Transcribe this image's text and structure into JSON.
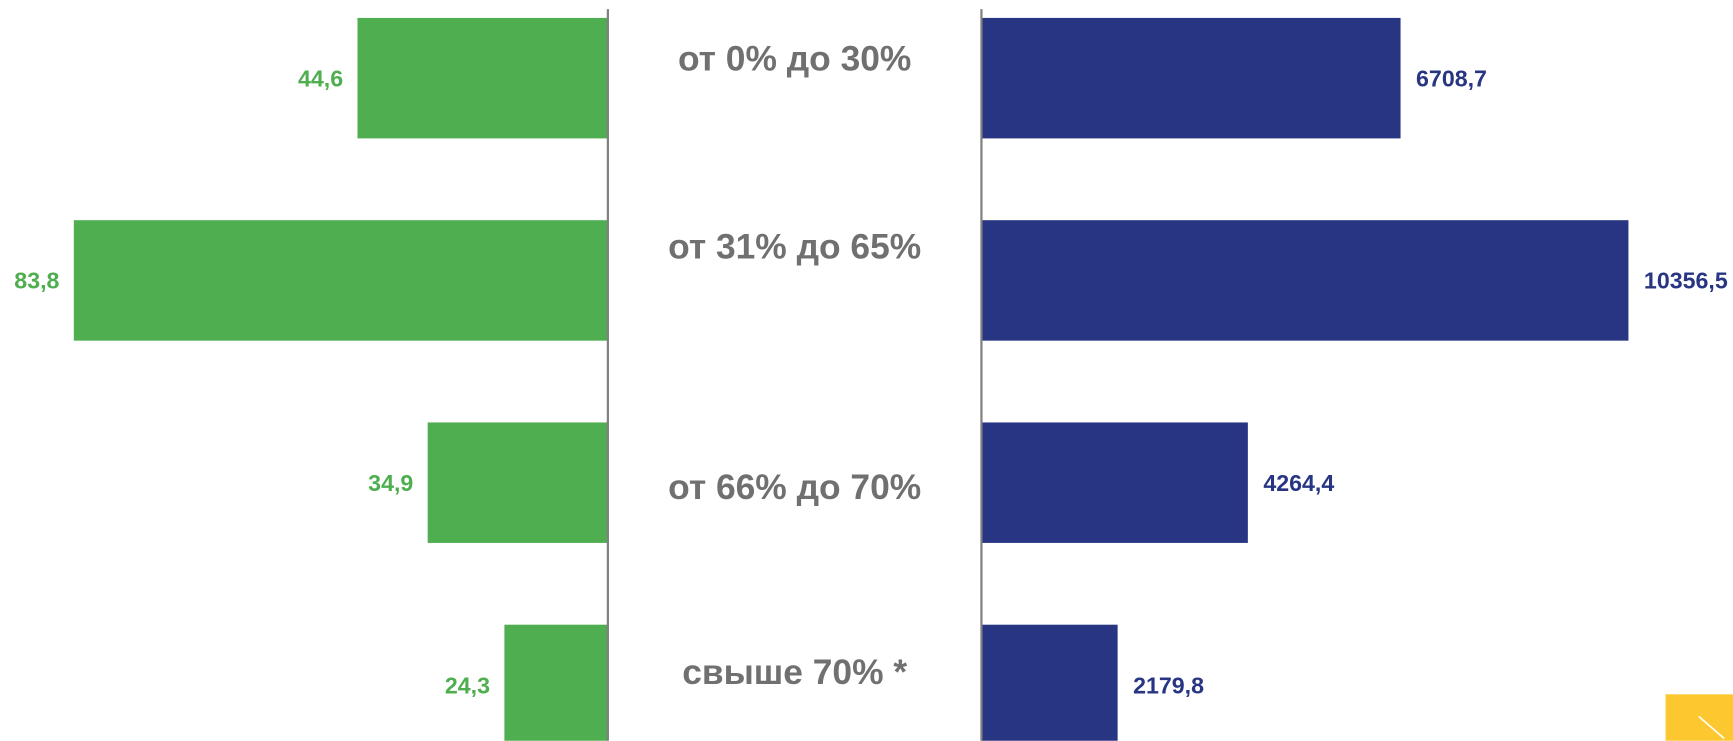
{
  "chart_data": {
    "type": "bar",
    "categories": [
      "от 0% до 30%",
      "от 31% до 65%",
      "от 66% до 70%",
      "свыше 70% *"
    ],
    "xlim": [
      10,
      94
    ],
    "x2lim": [
      0,
      12030
    ],
    "series": [
      {
        "color": "#4fae4f",
        "values": [
          44.6,
          83.8,
          34.9,
          24.3
        ],
        "value_labels": [
          "44,6",
          "83,8",
          "34,9",
          "24,3"
        ]
      },
      {
        "color": "#283583",
        "axis": "x2",
        "values": [
          6708.7,
          10356.5,
          4264.4,
          2179.8
        ],
        "value_labels": [
          "6708,7",
          "10356,5",
          "4264,4",
          "2179,8"
        ]
      }
    ]
  }
}
